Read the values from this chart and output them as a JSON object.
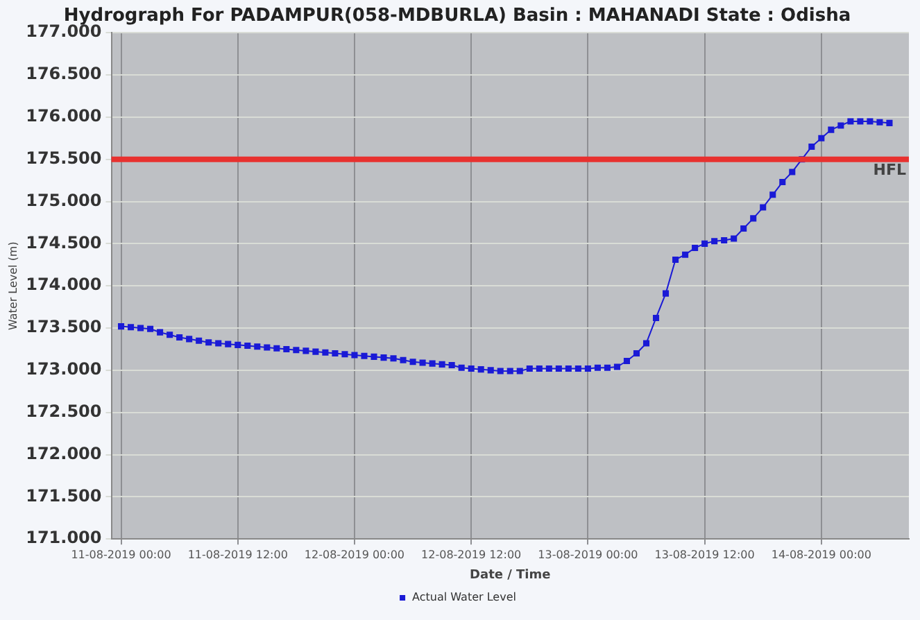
{
  "chart_data": {
    "type": "line",
    "title": "Hydrograph For PADAMPUR(058-MDBURLA) Basin : MAHANADI State : Odisha",
    "xlabel": "Date / Time",
    "ylabel": "Water Level (m)",
    "x": [
      "2019-08-11T00:00",
      "2019-08-11T01:00",
      "2019-08-11T02:00",
      "2019-08-11T03:00",
      "2019-08-11T04:00",
      "2019-08-11T05:00",
      "2019-08-11T06:00",
      "2019-08-11T07:00",
      "2019-08-11T08:00",
      "2019-08-11T09:00",
      "2019-08-11T10:00",
      "2019-08-11T11:00",
      "2019-08-11T12:00",
      "2019-08-11T13:00",
      "2019-08-11T14:00",
      "2019-08-11T15:00",
      "2019-08-11T16:00",
      "2019-08-11T17:00",
      "2019-08-11T18:00",
      "2019-08-11T19:00",
      "2019-08-11T20:00",
      "2019-08-11T21:00",
      "2019-08-11T22:00",
      "2019-08-11T23:00",
      "2019-08-12T00:00",
      "2019-08-12T01:00",
      "2019-08-12T02:00",
      "2019-08-12T03:00",
      "2019-08-12T04:00",
      "2019-08-12T05:00",
      "2019-08-12T06:00",
      "2019-08-12T07:00",
      "2019-08-12T08:00",
      "2019-08-12T09:00",
      "2019-08-12T10:00",
      "2019-08-12T11:00",
      "2019-08-12T12:00",
      "2019-08-12T13:00",
      "2019-08-12T14:00",
      "2019-08-12T15:00",
      "2019-08-12T16:00",
      "2019-08-12T17:00",
      "2019-08-12T18:00",
      "2019-08-12T19:00",
      "2019-08-12T20:00",
      "2019-08-12T21:00",
      "2019-08-12T22:00",
      "2019-08-12T23:00",
      "2019-08-13T00:00",
      "2019-08-13T01:00",
      "2019-08-13T02:00",
      "2019-08-13T03:00",
      "2019-08-13T04:00",
      "2019-08-13T05:00",
      "2019-08-13T06:00",
      "2019-08-13T07:00",
      "2019-08-13T08:00",
      "2019-08-13T09:00",
      "2019-08-13T10:00",
      "2019-08-13T11:00",
      "2019-08-13T12:00",
      "2019-08-13T13:00",
      "2019-08-13T14:00",
      "2019-08-13T15:00",
      "2019-08-13T16:00",
      "2019-08-13T17:00",
      "2019-08-13T18:00",
      "2019-08-13T19:00",
      "2019-08-13T20:00",
      "2019-08-13T21:00",
      "2019-08-13T22:00",
      "2019-08-13T23:00",
      "2019-08-14T00:00",
      "2019-08-14T01:00",
      "2019-08-14T02:00",
      "2019-08-14T03:00",
      "2019-08-14T04:00",
      "2019-08-14T05:00",
      "2019-08-14T06:00",
      "2019-08-14T07:00"
    ],
    "series": [
      {
        "name": "Actual Water Level",
        "color": "#1a1ad6",
        "values": [
          173.52,
          173.51,
          173.5,
          173.49,
          173.45,
          173.42,
          173.39,
          173.37,
          173.35,
          173.33,
          173.32,
          173.31,
          173.3,
          173.29,
          173.28,
          173.27,
          173.26,
          173.25,
          173.24,
          173.23,
          173.22,
          173.21,
          173.2,
          173.19,
          173.18,
          173.17,
          173.16,
          173.15,
          173.14,
          173.12,
          173.1,
          173.09,
          173.08,
          173.07,
          173.06,
          173.03,
          173.02,
          173.01,
          173.0,
          172.99,
          172.99,
          172.99,
          173.02,
          173.02,
          173.02,
          173.02,
          173.02,
          173.02,
          173.02,
          173.03,
          173.03,
          173.04,
          173.11,
          173.2,
          173.32,
          173.62,
          173.91,
          174.31,
          174.37,
          174.45,
          174.5,
          174.53,
          174.54,
          174.56,
          174.68,
          174.8,
          174.93,
          175.08,
          175.23,
          175.35,
          175.5,
          175.65,
          175.75,
          175.85,
          175.9,
          175.95,
          175.95,
          175.95,
          175.94,
          175.93
        ]
      }
    ],
    "xlim": [
      "2019-08-10T23:00",
      "2019-08-14T09:00"
    ],
    "xticks": [
      {
        "value": "2019-08-11T00:00",
        "label": "11-08-2019 00:00"
      },
      {
        "value": "2019-08-11T12:00",
        "label": "11-08-2019 12:00"
      },
      {
        "value": "2019-08-12T00:00",
        "label": "12-08-2019 00:00"
      },
      {
        "value": "2019-08-12T12:00",
        "label": "12-08-2019 12:00"
      },
      {
        "value": "2019-08-13T00:00",
        "label": "13-08-2019 00:00"
      },
      {
        "value": "2019-08-13T12:00",
        "label": "13-08-2019 12:00"
      },
      {
        "value": "2019-08-14T00:00",
        "label": "14-08-2019 00:00"
      }
    ],
    "ylim": [
      171,
      177
    ],
    "yticks": [
      {
        "value": 171,
        "label": "171.000"
      },
      {
        "value": 171.5,
        "label": "171.500"
      },
      {
        "value": 172,
        "label": "172.000"
      },
      {
        "value": 172.5,
        "label": "172.500"
      },
      {
        "value": 173,
        "label": "173.000"
      },
      {
        "value": 173.5,
        "label": "173.500"
      },
      {
        "value": 174,
        "label": "174.000"
      },
      {
        "value": 174.5,
        "label": "174.500"
      },
      {
        "value": 175,
        "label": "175.000"
      },
      {
        "value": 175.5,
        "label": "175.500"
      },
      {
        "value": 176,
        "label": "176.000"
      },
      {
        "value": 176.5,
        "label": "176.500"
      },
      {
        "value": 177,
        "label": "177.000"
      }
    ],
    "ref_lines": [
      {
        "axis": "y",
        "value": 175.5,
        "label": "HFL",
        "color": "#e8312f"
      }
    ],
    "grid": true,
    "legend": "bottom",
    "marker": "square",
    "line_style": "solid"
  }
}
